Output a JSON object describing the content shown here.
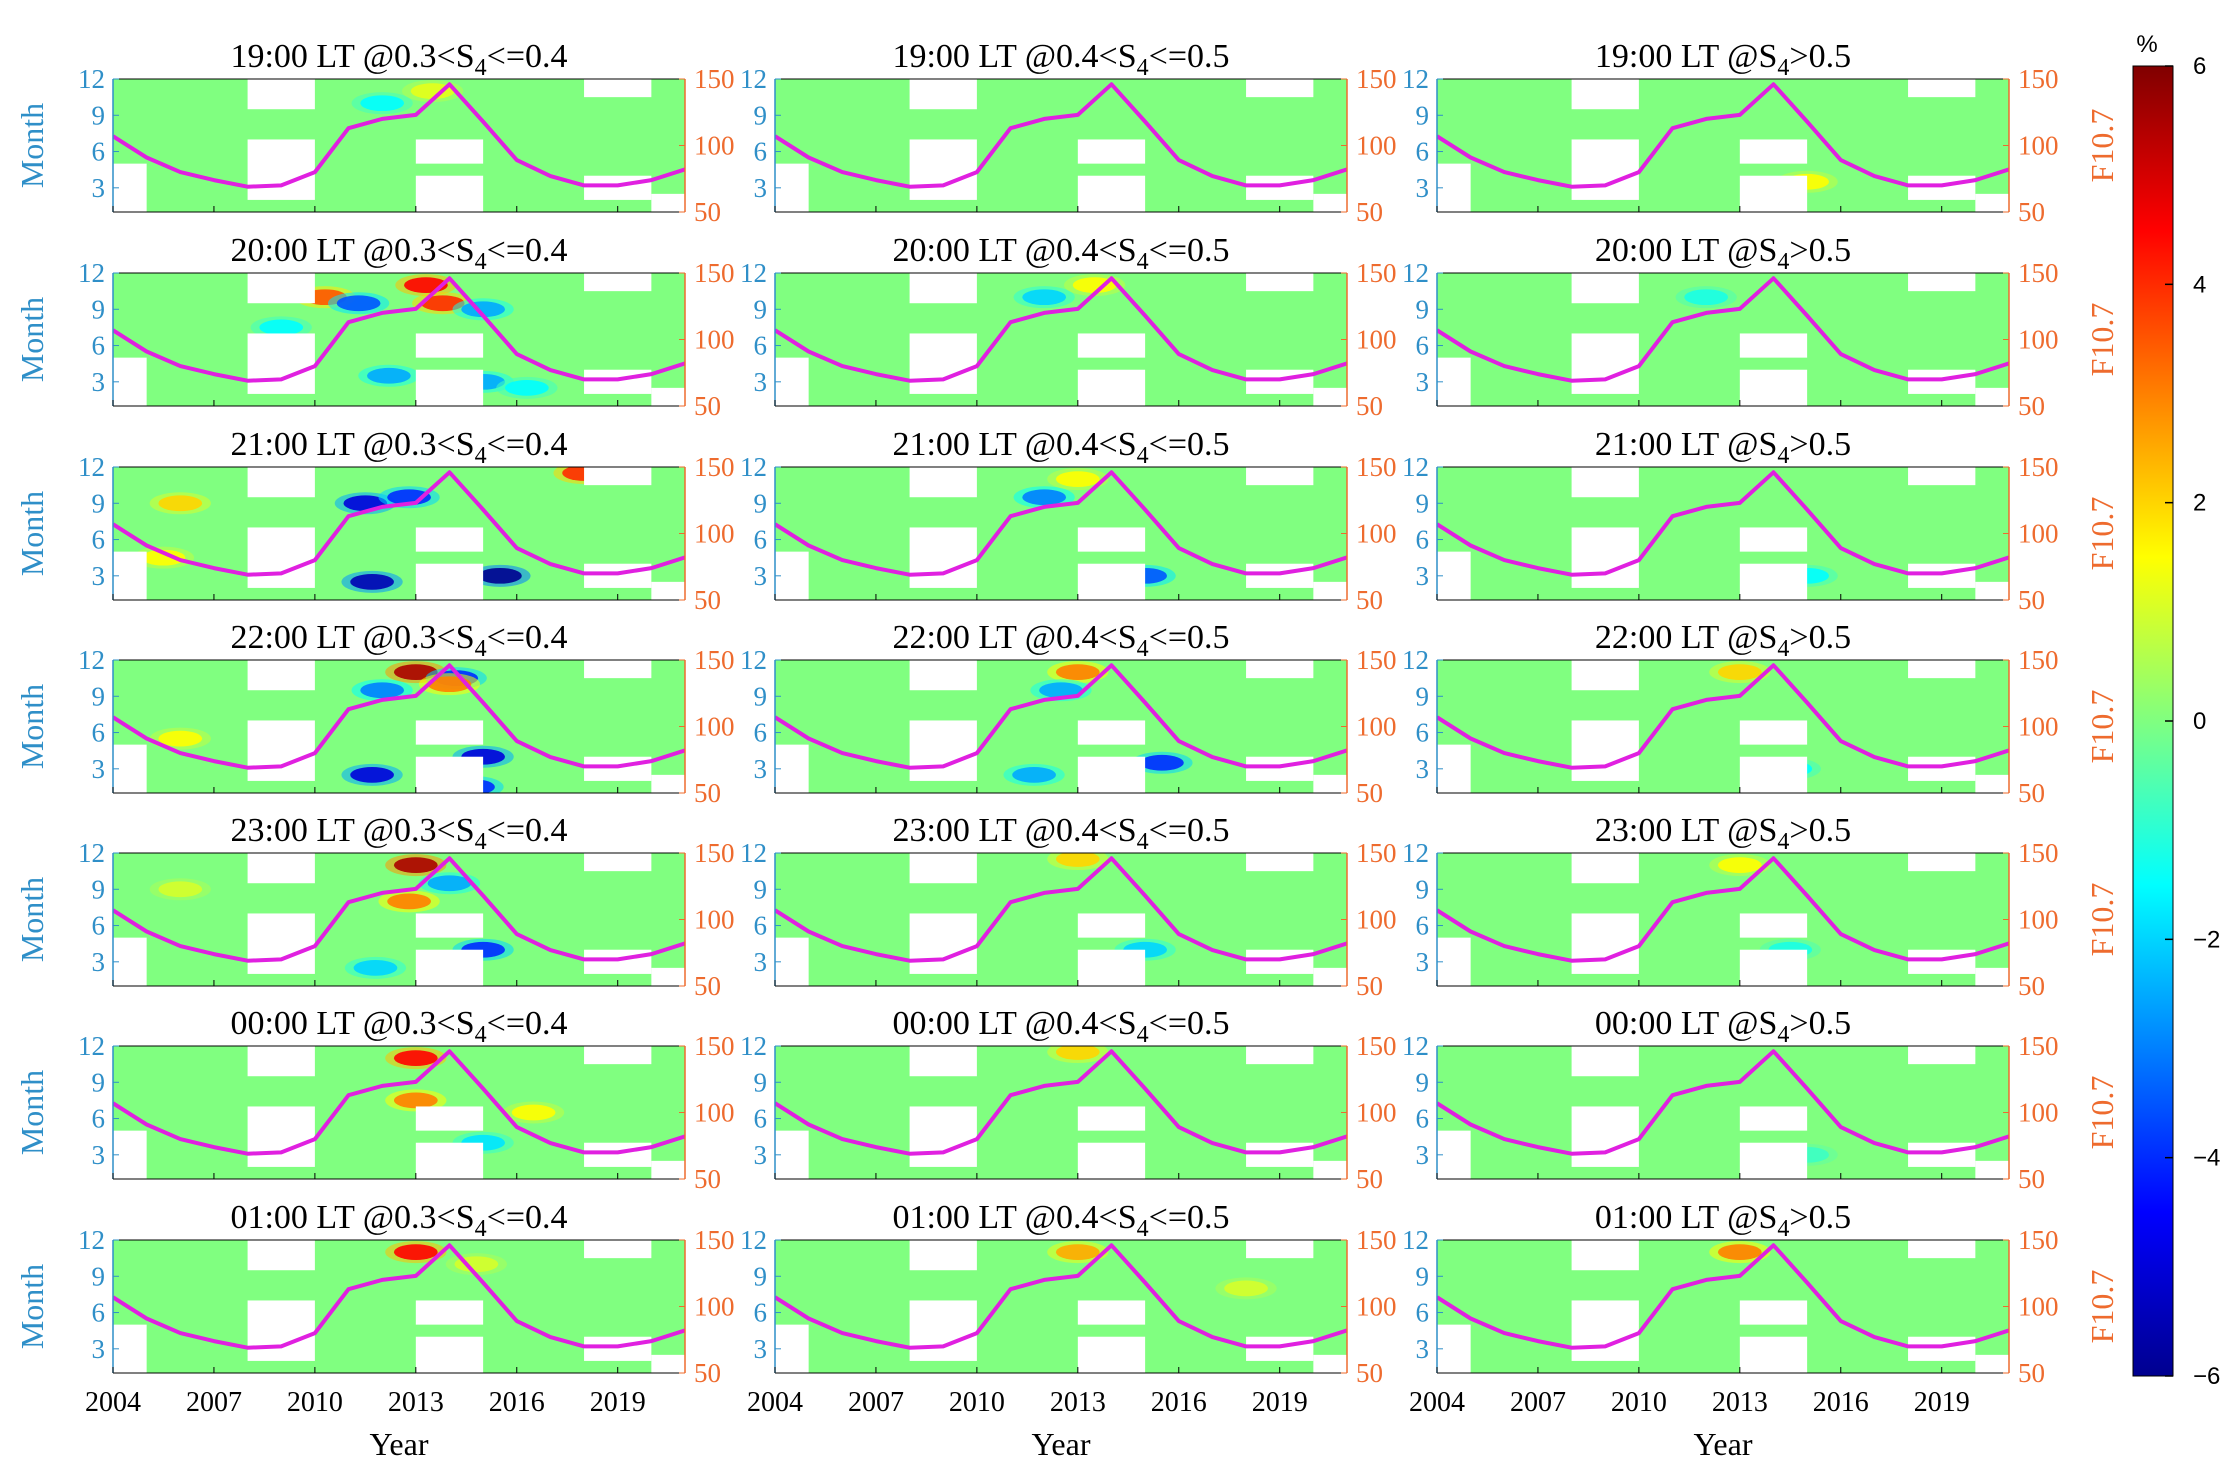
{
  "chart_data": {
    "type": "heatmap",
    "layout": "7x3 panel grid (rows: local time, columns: S4 range) with F10.7 line overlay",
    "row_titles": [
      "19:00 LT",
      "20:00 LT",
      "21:00 LT",
      "22:00 LT",
      "23:00 LT",
      "00:00 LT",
      "01:00 LT"
    ],
    "col_conditions": [
      {
        "prefix": "@0.3<S",
        "sub": "4",
        "suffix": "<=0.4"
      },
      {
        "prefix": "@0.4<S",
        "sub": "4",
        "suffix": "<=0.5"
      },
      {
        "prefix": "@S",
        "sub": "4",
        "suffix": ">0.5"
      }
    ],
    "xlabel": "Year",
    "ylabel_left": "Month",
    "ylabel_right": "F10.7",
    "x_range": [
      2004,
      2021
    ],
    "x_ticks": [
      "2004",
      "2007",
      "2010",
      "2013",
      "2016",
      "2019"
    ],
    "y_left_range": [
      1,
      12
    ],
    "y_left_ticks": [
      "3",
      "6",
      "9",
      "12"
    ],
    "y_right_range": [
      50,
      150
    ],
    "y_right_ticks": [
      "50",
      "100",
      "150"
    ],
    "colorbar": {
      "label": "%",
      "range": [
        -6,
        6
      ],
      "ticks": [
        "6",
        "4",
        "2",
        "0",
        "−2",
        "−4",
        "−6"
      ],
      "colormap": [
        "#00008f",
        "#0000ff",
        "#0080ff",
        "#00ffff",
        "#80ff80",
        "#ffff00",
        "#ff8000",
        "#ff0000",
        "#800000"
      ]
    },
    "background_value": 0,
    "f107_series": {
      "name": "F10.7",
      "color": "#e020e0",
      "years": [
        2004,
        2005,
        2006,
        2007,
        2008,
        2009,
        2010,
        2011,
        2012,
        2013,
        2014,
        2015,
        2016,
        2017,
        2018,
        2019,
        2020,
        2021
      ],
      "values": [
        107,
        91,
        80,
        74,
        69,
        70,
        80,
        113,
        120,
        123,
        146,
        118,
        89,
        77,
        70,
        70,
        74,
        82
      ]
    },
    "missing_data_cells": [
      {
        "x0": 2004.0,
        "x1": 2005.0,
        "y0": 1.0,
        "y1": 5.0
      },
      {
        "x0": 2008.0,
        "x1": 2010.0,
        "y0": 9.5,
        "y1": 12.0
      },
      {
        "x0": 2008.0,
        "x1": 2010.0,
        "y0": 2.0,
        "y1": 7.0
      },
      {
        "x0": 2013.0,
        "x1": 2015.0,
        "y0": 5.0,
        "y1": 7.0
      },
      {
        "x0": 2013.0,
        "x1": 2015.0,
        "y0": 1.0,
        "y1": 4.0
      },
      {
        "x0": 2018.0,
        "x1": 2020.0,
        "y0": 10.5,
        "y1": 12.0
      },
      {
        "x0": 2018.0,
        "x1": 2020.0,
        "y0": 2.0,
        "y1": 4.0
      },
      {
        "x0": 2020.0,
        "x1": 2021.0,
        "y0": 1.0,
        "y1": 2.5
      }
    ],
    "anomalies": [
      {
        "panel": [
          0,
          0
        ],
        "year": 2012.0,
        "month": 10.0,
        "value": -1.5
      },
      {
        "panel": [
          0,
          0
        ],
        "year": 2013.5,
        "month": 11.0,
        "value": 1.2
      },
      {
        "panel": [
          0,
          2
        ],
        "year": 2015.0,
        "month": 3.5,
        "value": 1.5
      },
      {
        "panel": [
          1,
          0
        ],
        "year": 2010.3,
        "month": 10.0,
        "value": 3.5
      },
      {
        "panel": [
          1,
          0
        ],
        "year": 2011.3,
        "month": 9.5,
        "value": -3.5
      },
      {
        "panel": [
          1,
          0
        ],
        "year": 2013.3,
        "month": 11.0,
        "value": 4.5
      },
      {
        "panel": [
          1,
          0
        ],
        "year": 2013.8,
        "month": 9.5,
        "value": 4.0
      },
      {
        "panel": [
          1,
          0
        ],
        "year": 2015.0,
        "month": 9.0,
        "value": -2.5
      },
      {
        "panel": [
          1,
          0
        ],
        "year": 2012.2,
        "month": 3.5,
        "value": -2.5
      },
      {
        "panel": [
          1,
          0
        ],
        "year": 2015.0,
        "month": 3.0,
        "value": -2.5
      },
      {
        "panel": [
          1,
          0
        ],
        "year": 2016.3,
        "month": 2.5,
        "value": -1.5
      },
      {
        "panel": [
          1,
          0
        ],
        "year": 2009.0,
        "month": 7.5,
        "value": -1.5
      },
      {
        "panel": [
          1,
          1
        ],
        "year": 2012.0,
        "month": 10.0,
        "value": -2.0
      },
      {
        "panel": [
          1,
          1
        ],
        "year": 2013.5,
        "month": 11.0,
        "value": 1.5
      },
      {
        "panel": [
          1,
          2
        ],
        "year": 2012.0,
        "month": 10.0,
        "value": -1.2
      },
      {
        "panel": [
          2,
          0
        ],
        "year": 2006.0,
        "month": 9.0,
        "value": 2.0
      },
      {
        "panel": [
          2,
          0
        ],
        "year": 2011.5,
        "month": 9.0,
        "value": -5.0
      },
      {
        "panel": [
          2,
          0
        ],
        "year": 2012.8,
        "month": 9.5,
        "value": -4.0
      },
      {
        "panel": [
          2,
          0
        ],
        "year": 2011.7,
        "month": 2.5,
        "value": -5.5
      },
      {
        "panel": [
          2,
          0
        ],
        "year": 2015.5,
        "month": 3.0,
        "value": -6.0
      },
      {
        "panel": [
          2,
          0
        ],
        "year": 2018.0,
        "month": 11.5,
        "value": 4.0
      },
      {
        "panel": [
          2,
          0
        ],
        "year": 2005.5,
        "month": 4.5,
        "value": 1.5
      },
      {
        "panel": [
          2,
          1
        ],
        "year": 2012.0,
        "month": 9.5,
        "value": -3.0
      },
      {
        "panel": [
          2,
          1
        ],
        "year": 2015.0,
        "month": 3.0,
        "value": -3.5
      },
      {
        "panel": [
          2,
          1
        ],
        "year": 2013.0,
        "month": 11.0,
        "value": 1.5
      },
      {
        "panel": [
          2,
          2
        ],
        "year": 2015.0,
        "month": 3.0,
        "value": -1.5
      },
      {
        "panel": [
          3,
          0
        ],
        "year": 2013.0,
        "month": 11.0,
        "value": 5.5
      },
      {
        "panel": [
          3,
          0
        ],
        "year": 2014.2,
        "month": 10.5,
        "value": -4.0
      },
      {
        "panel": [
          3,
          0
        ],
        "year": 2012.0,
        "month": 9.5,
        "value": -3.0
      },
      {
        "panel": [
          3,
          0
        ],
        "year": 2011.7,
        "month": 2.5,
        "value": -5.0
      },
      {
        "panel": [
          3,
          0
        ],
        "year": 2015.0,
        "month": 4.0,
        "value": -5.0
      },
      {
        "panel": [
          3,
          0
        ],
        "year": 2014.7,
        "month": 1.5,
        "value": -4.0
      },
      {
        "panel": [
          3,
          0
        ],
        "year": 2014.0,
        "month": 10.0,
        "value": 3.0
      },
      {
        "panel": [
          3,
          0
        ],
        "year": 2006.0,
        "month": 5.5,
        "value": 1.5
      },
      {
        "panel": [
          3,
          1
        ],
        "year": 2013.0,
        "month": 11.0,
        "value": 3.0
      },
      {
        "panel": [
          3,
          1
        ],
        "year": 2012.5,
        "month": 9.5,
        "value": -2.5
      },
      {
        "panel": [
          3,
          1
        ],
        "year": 2015.5,
        "month": 3.5,
        "value": -4.0
      },
      {
        "panel": [
          3,
          1
        ],
        "year": 2011.7,
        "month": 2.5,
        "value": -2.5
      },
      {
        "panel": [
          3,
          2
        ],
        "year": 2013.0,
        "month": 11.0,
        "value": 2.0
      },
      {
        "panel": [
          3,
          2
        ],
        "year": 2014.5,
        "month": 3.0,
        "value": -1.5
      },
      {
        "panel": [
          4,
          0
        ],
        "year": 2013.0,
        "month": 11.0,
        "value": 5.5
      },
      {
        "panel": [
          4,
          0
        ],
        "year": 2012.8,
        "month": 8.0,
        "value": 3.0
      },
      {
        "panel": [
          4,
          0
        ],
        "year": 2014.0,
        "month": 9.5,
        "value": -2.5
      },
      {
        "panel": [
          4,
          0
        ],
        "year": 2015.0,
        "month": 4.0,
        "value": -4.0
      },
      {
        "panel": [
          4,
          0
        ],
        "year": 2011.8,
        "month": 2.5,
        "value": -2.0
      },
      {
        "panel": [
          4,
          0
        ],
        "year": 2006.0,
        "month": 9.0,
        "value": 1.0
      },
      {
        "panel": [
          4,
          1
        ],
        "year": 2013.0,
        "month": 11.5,
        "value": 2.0
      },
      {
        "panel": [
          4,
          1
        ],
        "year": 2015.0,
        "month": 4.0,
        "value": -2.0
      },
      {
        "panel": [
          4,
          2
        ],
        "year": 2013.0,
        "month": 11.0,
        "value": 1.5
      },
      {
        "panel": [
          4,
          2
        ],
        "year": 2014.5,
        "month": 4.0,
        "value": -1.2
      },
      {
        "panel": [
          5,
          0
        ],
        "year": 2013.0,
        "month": 11.0,
        "value": 4.5
      },
      {
        "panel": [
          5,
          0
        ],
        "year": 2013.0,
        "month": 7.5,
        "value": 3.0
      },
      {
        "panel": [
          5,
          0
        ],
        "year": 2015.0,
        "month": 4.0,
        "value": -1.8
      },
      {
        "panel": [
          5,
          0
        ],
        "year": 2016.5,
        "month": 6.5,
        "value": 1.5
      },
      {
        "panel": [
          5,
          1
        ],
        "year": 2013.0,
        "month": 11.5,
        "value": 2.0
      },
      {
        "panel": [
          5,
          2
        ],
        "year": 2015.0,
        "month": 3.0,
        "value": -0.8
      },
      {
        "panel": [
          6,
          0
        ],
        "year": 2013.0,
        "month": 11.0,
        "value": 4.5
      },
      {
        "panel": [
          6,
          0
        ],
        "year": 2014.8,
        "month": 10.0,
        "value": 1.0
      },
      {
        "panel": [
          6,
          1
        ],
        "year": 2013.0,
        "month": 11.0,
        "value": 2.5
      },
      {
        "panel": [
          6,
          1
        ],
        "year": 2018.0,
        "month": 8.0,
        "value": 1.0
      },
      {
        "panel": [
          6,
          2
        ],
        "year": 2013.0,
        "month": 11.0,
        "value": 3.0
      }
    ]
  },
  "colors": {
    "left_axis": "#2f8fc8",
    "right_axis": "#ee6b2e",
    "missing": "#ffffff",
    "frame": "#000000"
  }
}
